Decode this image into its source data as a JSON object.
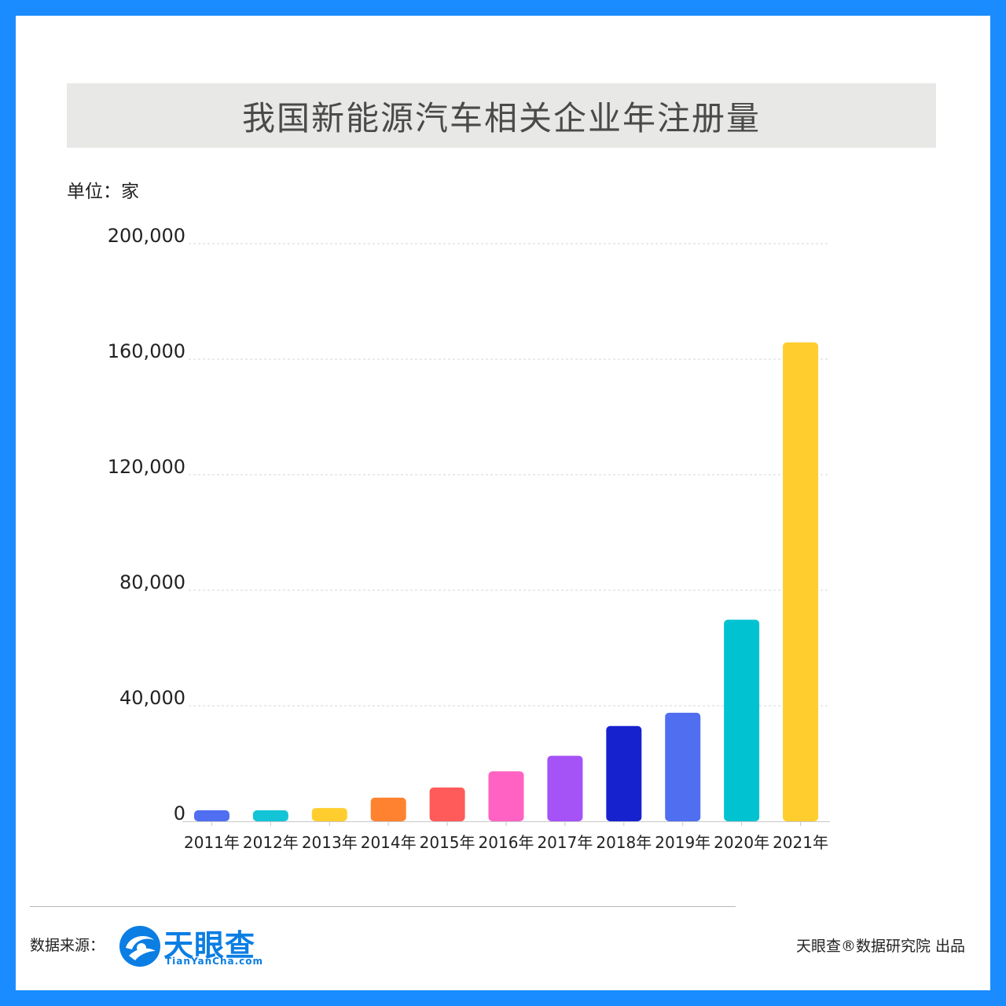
{
  "title": "我国新能源汽车相关企业年注册量",
  "unit": "单位：家",
  "footer": {
    "source_label": "数据来源：",
    "logo_cn": "天眼查",
    "logo_en": "TianYanCha.com",
    "credit": "天眼查®数据研究院 出品"
  },
  "colors": {
    "frame": "#1a8cff",
    "title_bg": "#e8e8e6",
    "logo": "#0b7ee3"
  },
  "chart_data": {
    "type": "bar",
    "title": "我国新能源汽车相关企业年注册量",
    "ylabel": "单位：家",
    "xlabel": "",
    "ylim": [
      0,
      200000
    ],
    "yticks": [
      "0",
      "40,000",
      "80,000",
      "120,000",
      "160,000",
      "200,000"
    ],
    "ytick_values": [
      0,
      40000,
      80000,
      120000,
      160000,
      200000
    ],
    "grid": true,
    "categories": [
      "2011年",
      "2012年",
      "2013年",
      "2014年",
      "2015年",
      "2016年",
      "2017年",
      "2018年",
      "2019年",
      "2020年",
      "2021年"
    ],
    "values": [
      3800,
      3800,
      4600,
      8200,
      11700,
      17300,
      22700,
      33000,
      37600,
      69800,
      165800
    ],
    "bar_colors": [
      "#4f6ff0",
      "#13c4d6",
      "#ffce2e",
      "#ff8230",
      "#ff5b5b",
      "#ff62c2",
      "#a552f7",
      "#1722cf",
      "#4f6ff0",
      "#00c2d1",
      "#ffce2e"
    ]
  }
}
